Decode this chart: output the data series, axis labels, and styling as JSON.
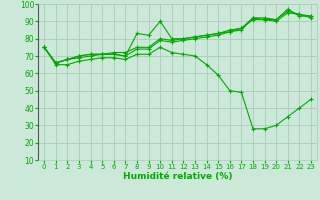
{
  "title": "",
  "xlabel": "Humidité relative (%)",
  "ylabel": "",
  "bg_color": "#cce8d8",
  "grid_color": "#aaccbb",
  "line_color": "#00aa00",
  "tick_color": "#00aa00",
  "xlim": [
    -0.5,
    23.5
  ],
  "ylim": [
    10,
    100
  ],
  "yticks": [
    10,
    20,
    30,
    40,
    50,
    60,
    70,
    80,
    90,
    100
  ],
  "xticks": [
    0,
    1,
    2,
    3,
    4,
    5,
    6,
    7,
    8,
    9,
    10,
    11,
    12,
    13,
    14,
    15,
    16,
    17,
    18,
    19,
    20,
    21,
    22,
    23
  ],
  "series": [
    {
      "x": [
        0,
        1,
        2,
        3,
        4,
        5,
        6,
        7,
        8,
        9,
        10,
        11,
        12,
        13,
        14,
        15,
        16,
        17,
        18,
        19,
        20,
        21,
        22,
        23
      ],
      "y": [
        75,
        66,
        68,
        70,
        71,
        71,
        71,
        70,
        83,
        82,
        90,
        80,
        80,
        81,
        82,
        83,
        84,
        85,
        92,
        92,
        91,
        97,
        93,
        93
      ]
    },
    {
      "x": [
        0,
        1,
        2,
        3,
        4,
        5,
        6,
        7,
        8,
        9,
        10,
        11,
        12,
        13,
        14,
        15,
        16,
        17,
        18,
        19,
        20,
        21,
        22,
        23
      ],
      "y": [
        75,
        66,
        68,
        70,
        71,
        71,
        72,
        72,
        75,
        75,
        80,
        79,
        80,
        81,
        82,
        83,
        85,
        86,
        92,
        91,
        91,
        96,
        94,
        93
      ]
    },
    {
      "x": [
        0,
        1,
        2,
        3,
        4,
        5,
        6,
        7,
        8,
        9,
        10,
        11,
        12,
        13,
        14,
        15,
        16,
        17,
        18,
        19,
        20,
        21,
        22,
        23
      ],
      "y": [
        75,
        66,
        68,
        69,
        70,
        71,
        71,
        70,
        74,
        74,
        79,
        78,
        79,
        80,
        81,
        82,
        84,
        86,
        91,
        91,
        90,
        95,
        94,
        92
      ]
    },
    {
      "x": [
        0,
        1,
        2,
        3,
        4,
        5,
        6,
        7,
        8,
        9,
        10,
        11,
        12,
        13,
        14,
        15,
        16,
        17,
        18,
        19,
        20,
        21,
        22,
        23
      ],
      "y": [
        75,
        65,
        65,
        67,
        68,
        69,
        69,
        68,
        71,
        71,
        75,
        72,
        71,
        70,
        65,
        59,
        50,
        49,
        28,
        28,
        30,
        35,
        40,
        45
      ]
    }
  ]
}
